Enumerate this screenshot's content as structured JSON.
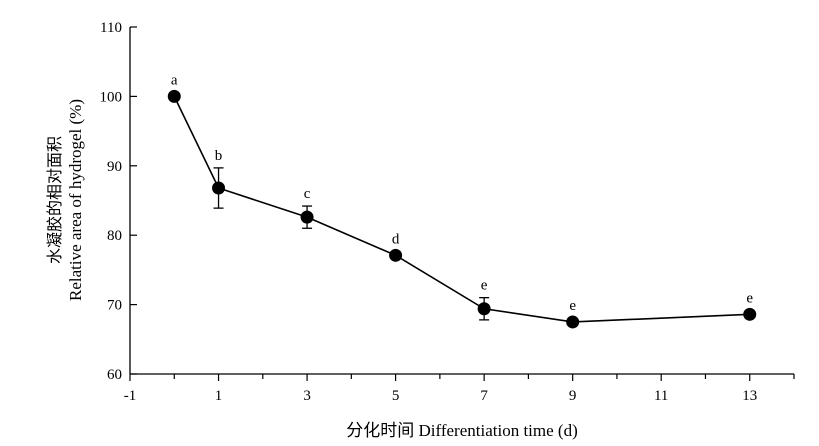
{
  "chart_data": {
    "type": "line",
    "xlabel": "分化时间 Differentiation time (d)",
    "ylabel_cn": "水凝胶的相对面积",
    "ylabel_en": "Relative area of hydrogel (%)",
    "xlim": [
      -1,
      14
    ],
    "ylim": [
      60,
      110
    ],
    "xticks": [
      -1,
      1,
      3,
      5,
      7,
      9,
      11,
      13
    ],
    "xticks_minor": [
      0,
      2,
      4,
      6,
      8,
      10,
      12,
      14
    ],
    "yticks": [
      60,
      70,
      80,
      90,
      100,
      110
    ],
    "grid": false,
    "points": [
      {
        "x": 0,
        "y": 100,
        "err": 0,
        "label": "a"
      },
      {
        "x": 1,
        "y": 86.8,
        "err": 2.9,
        "label": "b"
      },
      {
        "x": 3,
        "y": 82.6,
        "err": 1.6,
        "label": "c"
      },
      {
        "x": 5,
        "y": 77.1,
        "err": 0.4,
        "label": "d"
      },
      {
        "x": 7,
        "y": 69.4,
        "err": 1.6,
        "label": "e"
      },
      {
        "x": 9,
        "y": 67.5,
        "err": 0.3,
        "label": "e"
      },
      {
        "x": 13,
        "y": 68.6,
        "err": 0.4,
        "label": "e"
      }
    ]
  }
}
